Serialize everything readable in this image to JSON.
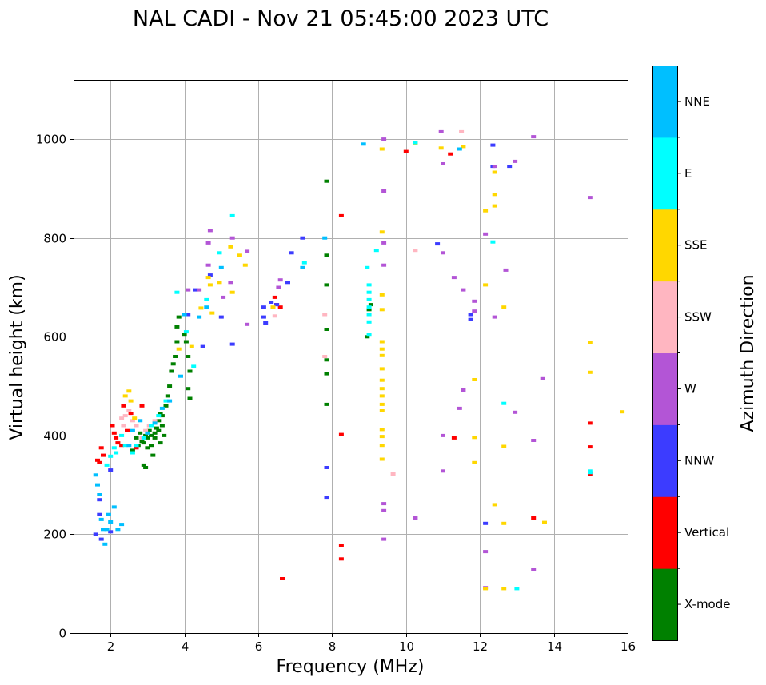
{
  "chart_data": {
    "type": "scatter",
    "title": "NAL CADI - Nov 21 05:45:00 2023 UTC",
    "xlabel": "Frequency (MHz)",
    "ylabel": "Virtual height (km)",
    "xlim": [
      1,
      16
    ],
    "ylim": [
      0,
      1120
    ],
    "xticks": [
      2,
      4,
      6,
      8,
      10,
      12,
      14,
      16
    ],
    "yticks": [
      0,
      200,
      400,
      600,
      800,
      1000
    ],
    "grid": true,
    "colorbar": {
      "title": "Azimuth Direction",
      "categories": [
        {
          "label": "X-mode",
          "color": "#008000"
        },
        {
          "label": "Vertical",
          "color": "#ff0000"
        },
        {
          "label": "NNW",
          "color": "#3c3cff"
        },
        {
          "label": "W",
          "color": "#b355d6"
        },
        {
          "label": "SSW",
          "color": "#ffb6c1"
        },
        {
          "label": "SSE",
          "color": "#ffd700"
        },
        {
          "label": "E",
          "color": "#00ffff"
        },
        {
          "label": "NNE",
          "color": "#00bfff"
        }
      ]
    },
    "series": [
      {
        "name": "X-mode",
        "color": "#008000",
        "points": [
          [
            2.6,
            370
          ],
          [
            2.7,
            395
          ],
          [
            2.75,
            380
          ],
          [
            2.8,
            405
          ],
          [
            2.85,
            388
          ],
          [
            2.9,
            340
          ],
          [
            2.95,
            400
          ],
          [
            3.0,
            375
          ],
          [
            3.05,
            410
          ],
          [
            3.1,
            380
          ],
          [
            3.15,
            360
          ],
          [
            3.2,
            395
          ],
          [
            3.25,
            415
          ],
          [
            3.3,
            430
          ],
          [
            3.35,
            445
          ],
          [
            3.4,
            420
          ],
          [
            3.45,
            400
          ],
          [
            3.5,
            460
          ],
          [
            3.55,
            480
          ],
          [
            3.6,
            500
          ],
          [
            3.65,
            530
          ],
          [
            3.7,
            545
          ],
          [
            3.75,
            560
          ],
          [
            3.8,
            590
          ],
          [
            3.8,
            620
          ],
          [
            3.85,
            640
          ],
          [
            4.0,
            605
          ],
          [
            4.05,
            590
          ],
          [
            4.1,
            560
          ],
          [
            4.15,
            530
          ],
          [
            4.1,
            495
          ],
          [
            4.15,
            475
          ],
          [
            3.0,
            395
          ],
          [
            2.9,
            385
          ],
          [
            3.1,
            400
          ],
          [
            3.2,
            405
          ],
          [
            3.3,
            410
          ],
          [
            3.35,
            385
          ],
          [
            3.4,
            440
          ],
          [
            2.95,
            335
          ],
          [
            7.85,
            915
          ],
          [
            7.85,
            765
          ],
          [
            7.85,
            705
          ],
          [
            7.85,
            615
          ],
          [
            7.85,
            553
          ],
          [
            7.85,
            525
          ],
          [
            7.85,
            463
          ],
          [
            8.95,
            600
          ],
          [
            9.0,
            655
          ],
          [
            9.05,
            665
          ]
        ]
      },
      {
        "name": "Vertical",
        "color": "#ff0000",
        "points": [
          [
            1.65,
            350
          ],
          [
            1.7,
            345
          ],
          [
            1.75,
            375
          ],
          [
            1.8,
            360
          ],
          [
            2.05,
            420
          ],
          [
            2.1,
            405
          ],
          [
            2.15,
            395
          ],
          [
            2.2,
            385
          ],
          [
            2.3,
            380
          ],
          [
            2.35,
            460
          ],
          [
            2.45,
            410
          ],
          [
            2.55,
            445
          ],
          [
            2.7,
            375
          ],
          [
            2.85,
            460
          ],
          [
            6.45,
            680
          ],
          [
            6.5,
            665
          ],
          [
            6.6,
            660
          ],
          [
            6.65,
            110
          ],
          [
            8.25,
            845
          ],
          [
            8.25,
            402
          ],
          [
            8.25,
            178
          ],
          [
            8.25,
            150
          ],
          [
            10.0,
            975
          ],
          [
            11.2,
            970
          ],
          [
            11.3,
            395
          ],
          [
            13.45,
            233
          ],
          [
            15.0,
            425
          ],
          [
            15.0,
            377
          ],
          [
            15.0,
            322
          ]
        ]
      },
      {
        "name": "NNW",
        "color": "#3c3cff",
        "points": [
          [
            1.6,
            200
          ],
          [
            1.7,
            240
          ],
          [
            1.75,
            190
          ],
          [
            1.7,
            270
          ],
          [
            2.0,
            205
          ],
          [
            2.0,
            330
          ],
          [
            4.1,
            645
          ],
          [
            4.3,
            695
          ],
          [
            4.5,
            580
          ],
          [
            4.7,
            725
          ],
          [
            5.0,
            640
          ],
          [
            5.3,
            585
          ],
          [
            6.15,
            640
          ],
          [
            6.15,
            660
          ],
          [
            6.2,
            628
          ],
          [
            6.35,
            670
          ],
          [
            6.5,
            665
          ],
          [
            6.8,
            710
          ],
          [
            6.9,
            770
          ],
          [
            7.2,
            800
          ],
          [
            7.85,
            335
          ],
          [
            7.85,
            275
          ],
          [
            10.85,
            788
          ],
          [
            11.75,
            645
          ],
          [
            11.75,
            635
          ],
          [
            12.15,
            222
          ],
          [
            12.35,
            988
          ],
          [
            12.35,
            945
          ],
          [
            12.8,
            945
          ]
        ]
      },
      {
        "name": "W",
        "color": "#b355d6",
        "points": [
          [
            4.1,
            695
          ],
          [
            4.4,
            695
          ],
          [
            4.65,
            745
          ],
          [
            4.65,
            790
          ],
          [
            4.7,
            815
          ],
          [
            5.05,
            680
          ],
          [
            5.25,
            710
          ],
          [
            5.3,
            800
          ],
          [
            5.7,
            625
          ],
          [
            5.7,
            773
          ],
          [
            6.55,
            700
          ],
          [
            6.6,
            715
          ],
          [
            9.4,
            1000
          ],
          [
            9.4,
            895
          ],
          [
            9.4,
            790
          ],
          [
            9.4,
            745
          ],
          [
            9.4,
            262
          ],
          [
            9.4,
            248
          ],
          [
            9.4,
            190
          ],
          [
            10.25,
            233
          ],
          [
            10.95,
            1015
          ],
          [
            11.0,
            950
          ],
          [
            11.0,
            770
          ],
          [
            11.0,
            400
          ],
          [
            11.0,
            328
          ],
          [
            11.3,
            720
          ],
          [
            11.45,
            455
          ],
          [
            11.55,
            695
          ],
          [
            11.55,
            492
          ],
          [
            11.85,
            672
          ],
          [
            11.85,
            652
          ],
          [
            12.15,
            808
          ],
          [
            12.15,
            165
          ],
          [
            12.15,
            92
          ],
          [
            12.4,
            945
          ],
          [
            12.4,
            640
          ],
          [
            12.7,
            735
          ],
          [
            12.95,
            955
          ],
          [
            12.95,
            447
          ],
          [
            13.45,
            1005
          ],
          [
            13.45,
            390
          ],
          [
            13.45,
            128
          ],
          [
            13.7,
            515
          ],
          [
            15.0,
            882
          ]
        ]
      },
      {
        "name": "SSW",
        "color": "#ffb6c1",
        "points": [
          [
            2.3,
            435
          ],
          [
            2.35,
            420
          ],
          [
            2.4,
            440
          ],
          [
            2.5,
            450
          ],
          [
            2.6,
            430
          ],
          [
            2.7,
            420
          ],
          [
            2.85,
            395
          ],
          [
            2.95,
            410
          ],
          [
            3.05,
            420
          ],
          [
            3.2,
            430
          ],
          [
            6.45,
            642
          ],
          [
            7.8,
            645
          ],
          [
            7.8,
            560
          ],
          [
            9.65,
            322
          ],
          [
            10.25,
            775
          ],
          [
            11.5,
            1015
          ]
        ]
      },
      {
        "name": "SSE",
        "color": "#ffd700",
        "points": [
          [
            2.4,
            480
          ],
          [
            2.5,
            490
          ],
          [
            2.55,
            470
          ],
          [
            2.65,
            435
          ],
          [
            3.85,
            575
          ],
          [
            4.2,
            580
          ],
          [
            4.45,
            658
          ],
          [
            4.65,
            720
          ],
          [
            4.7,
            705
          ],
          [
            4.75,
            648
          ],
          [
            4.95,
            710
          ],
          [
            5.25,
            782
          ],
          [
            5.3,
            690
          ],
          [
            5.5,
            765
          ],
          [
            5.65,
            745
          ],
          [
            6.4,
            660
          ],
          [
            9.35,
            980
          ],
          [
            9.35,
            812
          ],
          [
            9.35,
            685
          ],
          [
            9.35,
            655
          ],
          [
            9.35,
            590
          ],
          [
            9.35,
            575
          ],
          [
            9.35,
            562
          ],
          [
            9.35,
            535
          ],
          [
            9.35,
            512
          ],
          [
            9.35,
            495
          ],
          [
            9.35,
            480
          ],
          [
            9.35,
            463
          ],
          [
            9.35,
            450
          ],
          [
            9.35,
            412
          ],
          [
            9.35,
            398
          ],
          [
            9.35,
            380
          ],
          [
            9.35,
            352
          ],
          [
            10.25,
            992
          ],
          [
            10.95,
            982
          ],
          [
            11.55,
            985
          ],
          [
            11.85,
            513
          ],
          [
            11.85,
            396
          ],
          [
            11.85,
            345
          ],
          [
            12.15,
            855
          ],
          [
            12.15,
            705
          ],
          [
            12.15,
            90
          ],
          [
            12.4,
            933
          ],
          [
            12.4,
            888
          ],
          [
            12.4,
            865
          ],
          [
            12.4,
            260
          ],
          [
            12.65,
            660
          ],
          [
            12.65,
            378
          ],
          [
            12.65,
            222
          ],
          [
            12.65,
            90
          ],
          [
            13.75,
            224
          ],
          [
            15.0,
            588
          ],
          [
            15.0,
            528
          ],
          [
            15.85,
            448
          ]
        ]
      },
      {
        "name": "E",
        "color": "#00ffff",
        "points": [
          [
            1.9,
            340
          ],
          [
            2.0,
            358
          ],
          [
            2.1,
            375
          ],
          [
            2.15,
            365
          ],
          [
            2.3,
            400
          ],
          [
            2.4,
            380
          ],
          [
            2.6,
            365
          ],
          [
            2.7,
            380
          ],
          [
            2.9,
            395
          ],
          [
            3.1,
            420
          ],
          [
            3.3,
            440
          ],
          [
            3.5,
            470
          ],
          [
            3.8,
            690
          ],
          [
            4.05,
            610
          ],
          [
            4.25,
            540
          ],
          [
            4.6,
            675
          ],
          [
            4.95,
            770
          ],
          [
            5.3,
            845
          ],
          [
            7.25,
            750
          ],
          [
            8.95,
            740
          ],
          [
            9.0,
            705
          ],
          [
            9.0,
            690
          ],
          [
            9.0,
            675
          ],
          [
            9.0,
            660
          ],
          [
            9.0,
            645
          ],
          [
            9.0,
            630
          ],
          [
            9.0,
            605
          ],
          [
            9.2,
            775
          ],
          [
            10.25,
            993
          ],
          [
            12.35,
            792
          ],
          [
            12.65,
            465
          ],
          [
            13.0,
            90
          ],
          [
            15.0,
            325
          ],
          [
            15.0,
            328
          ]
        ]
      },
      {
        "name": "NNE",
        "color": "#00bfff",
        "points": [
          [
            1.6,
            320
          ],
          [
            1.65,
            300
          ],
          [
            1.7,
            280
          ],
          [
            1.75,
            230
          ],
          [
            1.8,
            210
          ],
          [
            1.85,
            180
          ],
          [
            1.9,
            210
          ],
          [
            1.95,
            240
          ],
          [
            2.2,
            210
          ],
          [
            2.3,
            220
          ],
          [
            2.0,
            225
          ],
          [
            2.1,
            255
          ],
          [
            2.5,
            380
          ],
          [
            2.6,
            410
          ],
          [
            2.8,
            430
          ],
          [
            3.0,
            405
          ],
          [
            3.2,
            425
          ],
          [
            3.4,
            455
          ],
          [
            3.6,
            470
          ],
          [
            3.9,
            520
          ],
          [
            4.0,
            645
          ],
          [
            4.4,
            640
          ],
          [
            4.6,
            660
          ],
          [
            5.0,
            740
          ],
          [
            7.2,
            740
          ],
          [
            7.8,
            800
          ],
          [
            8.85,
            990
          ],
          [
            11.45,
            980
          ]
        ]
      }
    ]
  }
}
